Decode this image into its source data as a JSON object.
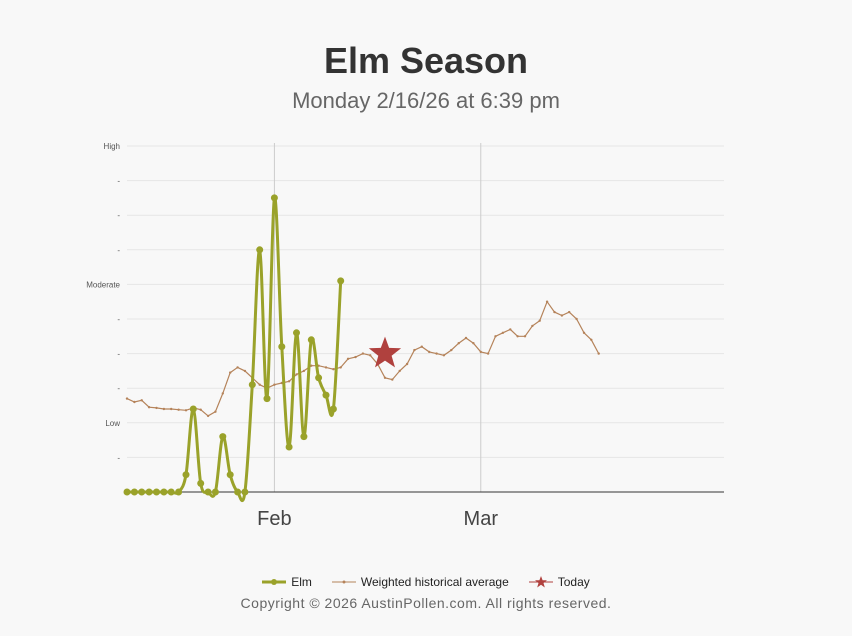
{
  "title": "Elm Season",
  "subtitle": "Monday 2/16/26 at 6:39 pm",
  "copyright": "Copyright © 2026 AustinPollen.com.  All rights reserved.",
  "colors": {
    "elm": "#9aa22a",
    "historical": "#b5835a",
    "today": "#b0413e",
    "grid": "#e6e6e6",
    "vline": "#cccccc",
    "axis": "#333333"
  },
  "chart_data": {
    "type": "line",
    "x_start": "2026-01-12",
    "xlim": [
      "2026-01-12",
      "2026-04-03"
    ],
    "ylim": [
      0,
      10
    ],
    "y_ticks": [
      {
        "value": 10,
        "label": "High"
      },
      {
        "value": 9,
        "label": "-"
      },
      {
        "value": 8,
        "label": "-"
      },
      {
        "value": 7,
        "label": "-"
      },
      {
        "value": 6,
        "label": "Moderate"
      },
      {
        "value": 5,
        "label": "-"
      },
      {
        "value": 4,
        "label": "-"
      },
      {
        "value": 3,
        "label": "-"
      },
      {
        "value": 2,
        "label": "Low"
      },
      {
        "value": 1,
        "label": "-"
      }
    ],
    "x_ticks": [
      {
        "date": "2026-02-01",
        "label": "Feb"
      },
      {
        "date": "2026-03-01",
        "label": "Mar"
      }
    ],
    "legend": [
      "Elm",
      "Weighted historical average",
      "Today"
    ],
    "series": [
      {
        "name": "Elm",
        "values": [
          0,
          0,
          0,
          0,
          0,
          0,
          0,
          0,
          0.5,
          2.4,
          0.25,
          0,
          0,
          1.6,
          0.5,
          0,
          0,
          3.1,
          7.0,
          2.7,
          8.5,
          4.2,
          1.3,
          4.6,
          1.6,
          4.4,
          3.3,
          2.8,
          2.4,
          6.1
        ]
      },
      {
        "name": "Weighted historical average",
        "values": [
          2.7,
          2.6,
          2.65,
          2.45,
          2.43,
          2.4,
          2.4,
          2.38,
          2.36,
          2.43,
          2.38,
          2.2,
          2.32,
          2.85,
          3.45,
          3.6,
          3.5,
          3.3,
          3.1,
          3.0,
          3.1,
          3.15,
          3.2,
          3.4,
          3.5,
          3.65,
          3.65,
          3.6,
          3.55,
          3.6,
          3.85,
          3.9,
          4.0,
          3.95,
          3.7,
          3.3,
          3.25,
          3.5,
          3.7,
          4.1,
          4.2,
          4.05,
          4.0,
          3.95,
          4.1,
          4.3,
          4.45,
          4.3,
          4.05,
          4.0,
          4.5,
          4.6,
          4.7,
          4.5,
          4.5,
          4.8,
          4.95,
          5.5,
          5.2,
          5.1,
          5.2,
          5.0,
          4.6,
          4.4,
          4.0
        ]
      }
    ],
    "today": {
      "date": "2026-02-16",
      "value": 4.0
    }
  }
}
